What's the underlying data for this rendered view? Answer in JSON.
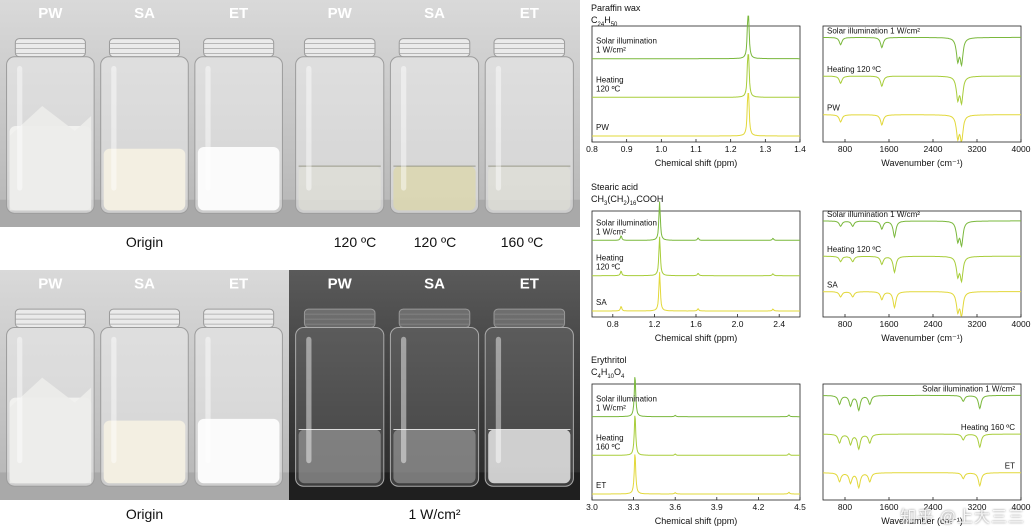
{
  "photos": [
    {
      "id": "p1",
      "labels": [
        "PW",
        "SA",
        "ET"
      ],
      "caption": "Origin",
      "dark": false,
      "state": "solid"
    },
    {
      "id": "p2",
      "labels": [
        "PW",
        "SA",
        "ET"
      ],
      "captions": [
        "120 ºC",
        "120 ºC",
        "160 ºC"
      ],
      "dark": false,
      "state": "melted"
    },
    {
      "id": "p3",
      "labels": [
        "PW",
        "SA",
        "ET"
      ],
      "caption": "Origin",
      "dark": false,
      "state": "solid"
    },
    {
      "id": "p4",
      "labels": [
        "PW",
        "SA",
        "ET"
      ],
      "caption": "1 W/cm²",
      "dark": true,
      "state": "illum"
    }
  ],
  "chart_data": [
    {
      "id": "nmr1",
      "type": "line",
      "title_line1": "Paraffin wax",
      "formula_html": "C<sub>24</sub>H<sub>50</sub>",
      "xlabel": "Chemical shift (ppm)",
      "xlim": [
        0.8,
        1.4
      ],
      "xticks": [
        "0.8",
        "0.9",
        "1.0",
        "1.1",
        "1.2",
        "1.3",
        "1.4"
      ],
      "peaks": [
        [
          1.25,
          1.0
        ],
        [
          1.252,
          0.4
        ]
      ],
      "series": [
        {
          "name": "Solar illumination\n1 W/cm²",
          "color": "#7ab83c"
        },
        {
          "name": "Heating\n120 ºC",
          "color": "#a8cd3a"
        },
        {
          "name": "PW",
          "color": "#e2d83a"
        }
      ]
    },
    {
      "id": "ir1",
      "type": "line",
      "title_line1": "",
      "formula_html": "",
      "xlabel": "Wavenumber (cm⁻¹)",
      "xlim": [
        400,
        4000
      ],
      "xticks": [
        "800",
        "1600",
        "2400",
        "3200",
        "4000"
      ],
      "peaks": [
        [
          2920,
          0.85
        ],
        [
          2850,
          0.75
        ],
        [
          1470,
          0.35
        ],
        [
          720,
          0.25
        ]
      ],
      "series": [
        {
          "name": "Solar illumination 1 W/cm²",
          "color": "#7ab83c"
        },
        {
          "name": "Heating 120 ºC",
          "color": "#a8cd3a"
        },
        {
          "name": "PW",
          "color": "#e2d83a"
        }
      ]
    },
    {
      "id": "nmr2",
      "type": "line",
      "title_line1": "Stearic acid",
      "formula_html": "CH<sub>3</sub>(CH<sub>2</sub>)<sub>16</sub>COOH",
      "xlabel": "Chemical shift (ppm)",
      "xlim": [
        0.6,
        2.6
      ],
      "xticks": [
        "0.8",
        "1.2",
        "1.6",
        "2.0",
        "2.4"
      ],
      "peaks": [
        [
          1.25,
          1.0
        ],
        [
          0.88,
          0.12
        ],
        [
          1.62,
          0.06
        ],
        [
          2.34,
          0.05
        ]
      ],
      "series": [
        {
          "name": "Solar illumination\n1 W/cm²",
          "color": "#7ab83c"
        },
        {
          "name": "Heating\n120 ºC",
          "color": "#a8cd3a"
        },
        {
          "name": "SA",
          "color": "#e2d83a"
        }
      ]
    },
    {
      "id": "ir2",
      "type": "line",
      "title_line1": "",
      "formula_html": "",
      "xlabel": "Wavenumber (cm⁻¹)",
      "xlim": [
        400,
        4000
      ],
      "xticks": [
        "800",
        "1600",
        "2400",
        "3200",
        "4000"
      ],
      "peaks": [
        [
          2920,
          0.85
        ],
        [
          2850,
          0.7
        ],
        [
          1700,
          0.6
        ],
        [
          1470,
          0.3
        ],
        [
          940,
          0.2
        ],
        [
          720,
          0.2
        ]
      ],
      "series": [
        {
          "name": "Solar illumination 1 W/cm²",
          "color": "#7ab83c"
        },
        {
          "name": "Heating 120 ºC",
          "color": "#a8cd3a"
        },
        {
          "name": "SA",
          "color": "#e2d83a"
        }
      ]
    },
    {
      "id": "nmr3",
      "type": "line",
      "title_line1": "Erythritol",
      "formula_html": "C<sub>4</sub>H<sub>10</sub>O<sub>4</sub>",
      "xlabel": "Chemical shift (ppm)",
      "xlim": [
        3.0,
        4.5
      ],
      "xticks": [
        "3.0",
        "3.3",
        "3.6",
        "3.9",
        "4.2",
        "4.5"
      ],
      "peaks": [
        [
          3.31,
          1.0
        ],
        [
          3.6,
          0.03
        ],
        [
          4.42,
          0.04
        ]
      ],
      "series": [
        {
          "name": "Solar illumination\n1 W/cm²",
          "color": "#7ab83c"
        },
        {
          "name": "Heating\n160 ºC",
          "color": "#a8cd3a"
        },
        {
          "name": "ET",
          "color": "#e2d83a"
        }
      ]
    },
    {
      "id": "ir3",
      "type": "line",
      "title_line1": "",
      "formula_html": "",
      "xlabel": "Wavenumber (cm⁻¹)",
      "xlim": [
        400,
        4000
      ],
      "xticks": [
        "800",
        "1600",
        "2400",
        "3200",
        "4000"
      ],
      "peaks": [
        [
          3250,
          0.45
        ],
        [
          1050,
          0.5
        ],
        [
          900,
          0.35
        ],
        [
          1250,
          0.3
        ],
        [
          700,
          0.3
        ],
        [
          2950,
          0.2
        ]
      ],
      "series": [
        {
          "name": "Solar illumination 1 W/cm²",
          "color": "#7ab83c"
        },
        {
          "name": "Heating 160 ºC",
          "color": "#a8cd3a"
        },
        {
          "name": "ET",
          "color": "#e2d83a"
        }
      ]
    }
  ],
  "watermark": "知乎 @上大三三"
}
